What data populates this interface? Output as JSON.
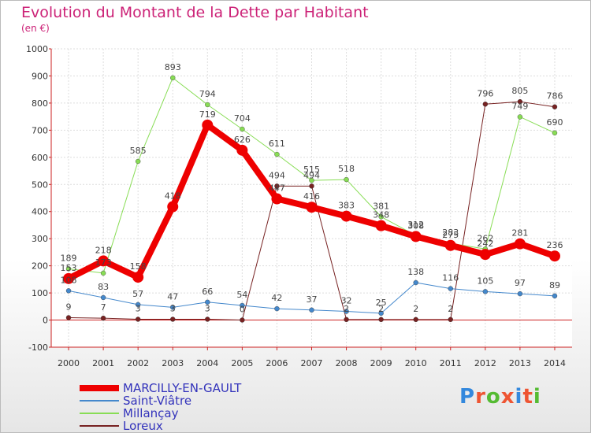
{
  "chart_data": {
    "type": "line",
    "title": "Evolution du Montant de la Dette par Habitant",
    "subtitle": "(en €)",
    "xlabel": "",
    "ylabel": "",
    "x": [
      "2000",
      "2001",
      "2002",
      "2003",
      "2004",
      "2005",
      "2006",
      "2007",
      "2008",
      "2009",
      "2010",
      "2011",
      "2012",
      "2013",
      "2014"
    ],
    "ylim": [
      -100,
      1000
    ],
    "yticks": [
      "-100",
      "0",
      "100",
      "200",
      "300",
      "400",
      "500",
      "600",
      "700",
      "800",
      "900",
      "1000"
    ],
    "grid": true,
    "legend_position": "bottom-left",
    "series": [
      {
        "name": "MARCILLY-EN-GAULT",
        "color": "#ee0000",
        "width": 8,
        "values": [
          153,
          218,
          158,
          418,
          719,
          626,
          447,
          416,
          383,
          348,
          308,
          275,
          242,
          281,
          236
        ],
        "labels": [
          "153",
          "218",
          "158",
          "418",
          "719",
          "626",
          "447",
          "416",
          "383",
          "348",
          "308",
          "275",
          "242",
          "281",
          "236"
        ]
      },
      {
        "name": "Saint-Viâtre",
        "color": "#4488cc",
        "width": 1,
        "values": [
          108,
          83,
          57,
          47,
          66,
          54,
          42,
          37,
          32,
          25,
          138,
          116,
          105,
          97,
          89
        ],
        "labels": [
          "108",
          "83",
          "57",
          "47",
          "66",
          "54",
          "42",
          "37",
          "32",
          "25",
          "138",
          "116",
          "105",
          "97",
          "89"
        ]
      },
      {
        "name": "Millançay",
        "color": "#88dd55",
        "width": 1,
        "values": [
          189,
          173,
          585,
          893,
          794,
          704,
          611,
          515,
          518,
          381,
          312,
          283,
          262,
          749,
          690
        ],
        "labels": [
          "189",
          "173",
          "585",
          "893",
          "794",
          "704",
          "611",
          "515",
          "518",
          "381",
          "312",
          "283",
          "262",
          "749",
          "690"
        ]
      },
      {
        "name": "Loreux",
        "color": "#772222",
        "width": 1,
        "values": [
          9,
          7,
          3,
          3,
          3,
          0,
          494,
          494,
          2,
          2,
          2,
          2,
          796,
          805,
          786
        ],
        "labels": [
          "9",
          "7",
          "3",
          "3",
          "3",
          "0",
          "494",
          "494",
          "2",
          "2",
          "2",
          "2",
          "796",
          "805",
          "786"
        ]
      }
    ]
  },
  "brand": {
    "text": "Proxiti",
    "colors": [
      "#3388dd",
      "#ee5533",
      "#55bb33",
      "#ee5533",
      "#3388dd",
      "#ee5533",
      "#55bb33"
    ]
  }
}
